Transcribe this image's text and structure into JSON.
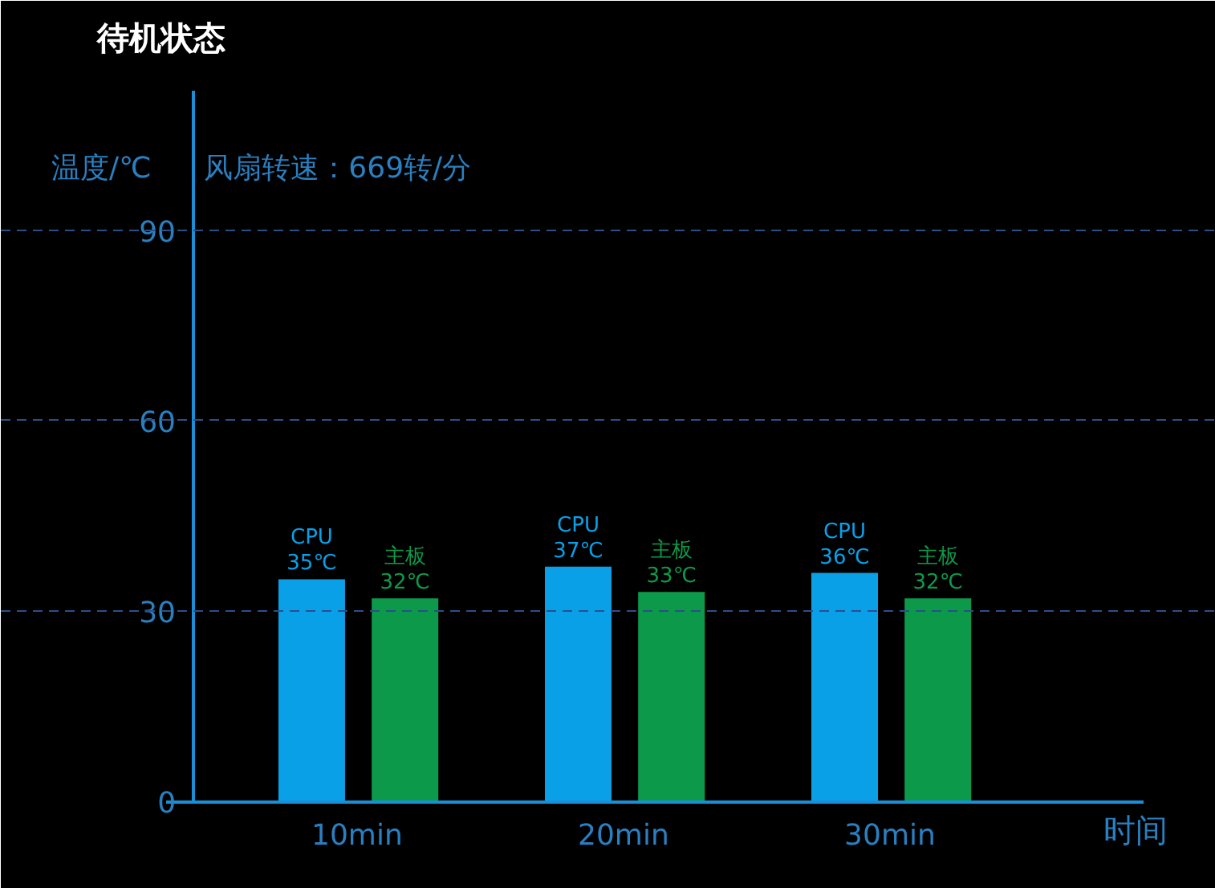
{
  "chart_data": {
    "type": "bar",
    "title": "待机状态",
    "subtitle": "风扇转速：669转/分",
    "ylabel": "温度/℃",
    "xlabel": "时间",
    "categories": [
      "10min",
      "20min",
      "30min"
    ],
    "series": [
      {
        "name": "CPU",
        "color": "#0aa0e8",
        "values": [
          35,
          37,
          36
        ],
        "value_labels": [
          "35℃",
          "37℃",
          "36℃"
        ]
      },
      {
        "name": "主板",
        "color": "#0c9a4a",
        "values": [
          32,
          33,
          32
        ],
        "value_labels": [
          "32℃",
          "33℃",
          "32℃"
        ]
      }
    ],
    "ylim": [
      0,
      112
    ],
    "yticks": [
      0,
      30,
      60,
      90
    ],
    "grid": "y"
  }
}
